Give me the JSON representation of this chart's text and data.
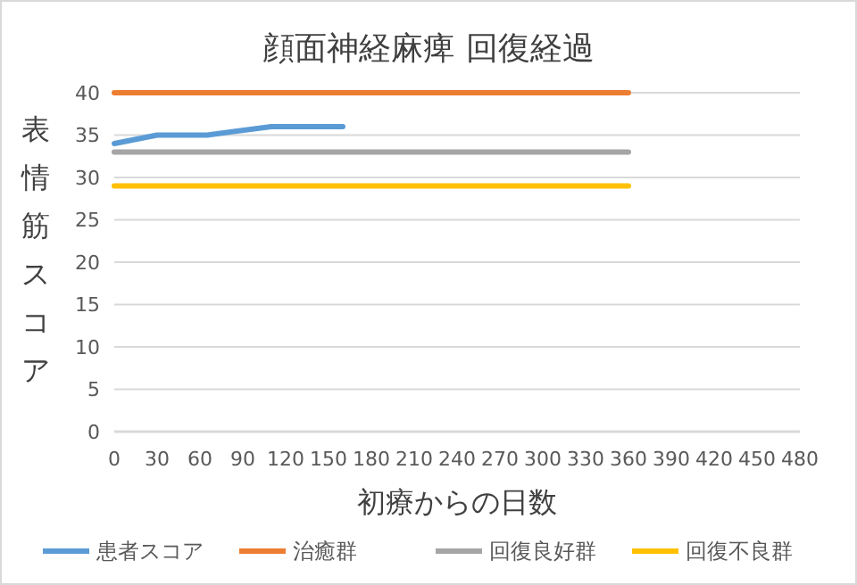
{
  "chart_data": {
    "type": "line",
    "title": "顔面神経麻痺  回復経過",
    "xlabel": "初療からの日数",
    "ylabel": "表情筋スコア",
    "xlim": [
      0,
      480
    ],
    "xticks": [
      0,
      30,
      60,
      90,
      120,
      150,
      180,
      210,
      240,
      270,
      300,
      330,
      360,
      390,
      420,
      450,
      480
    ],
    "ylim": [
      0,
      40
    ],
    "yticks": [
      0,
      5,
      10,
      15,
      20,
      25,
      30,
      35,
      40
    ],
    "grid": "y",
    "legend": "bottom",
    "series": [
      {
        "name": "患者スコア",
        "color": "#5b9bd5",
        "x": [
          0,
          30,
          65,
          110,
          160
        ],
        "values": [
          34,
          35,
          35,
          36,
          36
        ]
      },
      {
        "name": "治癒群",
        "color": "#ed7d31",
        "x": [
          0,
          360
        ],
        "values": [
          40,
          40
        ]
      },
      {
        "name": "回復良好群",
        "color": "#a5a5a5",
        "x": [
          0,
          360
        ],
        "values": [
          33,
          33
        ]
      },
      {
        "name": "回復不良群",
        "color": "#ffc000",
        "x": [
          0,
          360
        ],
        "values": [
          29,
          29
        ]
      }
    ]
  }
}
